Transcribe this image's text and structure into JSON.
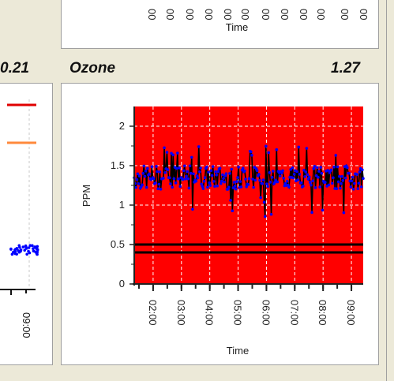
{
  "header_left": {
    "value": "0.21"
  },
  "ozone": {
    "title": "Ozone",
    "value": "1.27",
    "ylabel": "PPM",
    "xlabel": "Time",
    "y_ticks": [
      "2",
      "1.5",
      "1",
      "0.5",
      "0"
    ],
    "x_ticks": [
      "02:00",
      "03:00",
      "04:00",
      "05:00",
      "06:00",
      "07:00",
      "08:00",
      "09:00"
    ]
  },
  "top_panel": {
    "xlabel": "Time"
  },
  "left_panel": {
    "x_tick": "09:00"
  },
  "colors": {
    "plot_bg": "#ff0000",
    "series": "#0000ff",
    "threshold": "#000000",
    "legend_red": "#e00000",
    "legend_orange": "#ff8a3c",
    "window_bg": "#ece9d8"
  },
  "chart_data": {
    "type": "scatter",
    "title": "Ozone",
    "xlabel": "Time",
    "ylabel": "PPM",
    "ylim": [
      0,
      2.25
    ],
    "xlim": [
      "01:20",
      "09:25"
    ],
    "x_ticks": [
      "02:00",
      "03:00",
      "04:00",
      "05:00",
      "06:00",
      "07:00",
      "08:00",
      "09:00"
    ],
    "y_ticks": [
      0,
      0.5,
      1,
      1.5,
      2
    ],
    "grid": true,
    "series": [
      {
        "values_min": 0.85,
        "values_max": 1.75,
        "typical_range": [
          1.2,
          1.5
        ]
      }
    ],
    "reference_lines": [
      0.4,
      0.5
    ]
  }
}
